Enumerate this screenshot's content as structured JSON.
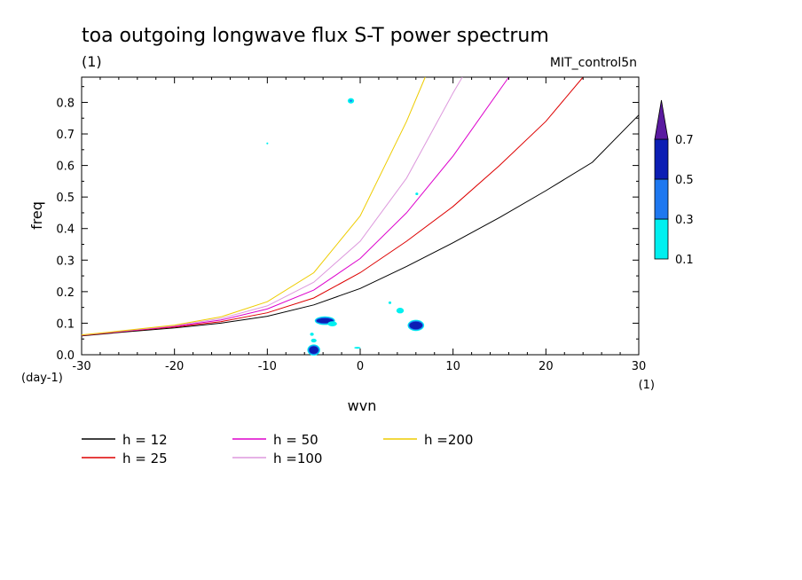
{
  "chart_data": {
    "type": "contour",
    "title": "toa outgoing longwave flux S-T power spectrum",
    "subtitle_left": "(1)",
    "subtitle_right": "MIT_control5n",
    "xlabel": "wvn",
    "ylabel": "freq",
    "x_unit": "(1)",
    "y_unit": "(day-1)",
    "xlim": [
      -30,
      30
    ],
    "ylim": [
      0,
      0.88
    ],
    "x_ticks": [
      -30,
      -20,
      -10,
      0,
      10,
      20,
      30
    ],
    "x_tick_labels": [
      "-30",
      "-20",
      "-10",
      "0",
      "10",
      "20",
      "30"
    ],
    "y_ticks": [
      0.0,
      0.1,
      0.2,
      0.3,
      0.4,
      0.5,
      0.6,
      0.7,
      0.8
    ],
    "y_tick_labels": [
      "0.0",
      "0.1",
      "0.2",
      "0.3",
      "0.4",
      "0.5",
      "0.6",
      "0.7",
      "0.8"
    ],
    "series": [
      {
        "name": "h = 12",
        "color": "#000000",
        "x": [
          -30,
          -25,
          -20,
          -15,
          -10,
          -5,
          0,
          5,
          10,
          15,
          20,
          25,
          30
        ],
        "y": [
          0.06,
          0.073,
          0.085,
          0.1,
          0.122,
          0.158,
          0.21,
          0.28,
          0.355,
          0.435,
          0.52,
          0.61,
          0.76
        ]
      },
      {
        "name": "h = 25",
        "color": "#dd0000",
        "x": [
          -30,
          -25,
          -20,
          -15,
          -10,
          -5,
          0,
          5,
          10,
          15,
          20,
          24
        ],
        "y": [
          0.061,
          0.075,
          0.088,
          0.105,
          0.133,
          0.18,
          0.26,
          0.36,
          0.47,
          0.6,
          0.74,
          0.88
        ]
      },
      {
        "name": "h = 50",
        "color": "#dd00cc",
        "x": [
          -30,
          -25,
          -20,
          -15,
          -10,
          -5,
          0,
          5,
          10,
          16
        ],
        "y": [
          0.062,
          0.076,
          0.09,
          0.11,
          0.145,
          0.205,
          0.305,
          0.45,
          0.63,
          0.88
        ]
      },
      {
        "name": "h =100",
        "color": "#dd99dd",
        "x": [
          -30,
          -25,
          -20,
          -15,
          -10,
          -5,
          0,
          5,
          10,
          11
        ],
        "y": [
          0.062,
          0.077,
          0.092,
          0.115,
          0.155,
          0.23,
          0.36,
          0.56,
          0.83,
          0.88
        ]
      },
      {
        "name": "h =200",
        "color": "#eecc00",
        "x": [
          -30,
          -25,
          -20,
          -15,
          -10,
          -5,
          0,
          5,
          7
        ],
        "y": [
          0.063,
          0.078,
          0.094,
          0.12,
          0.168,
          0.26,
          0.44,
          0.74,
          0.88
        ]
      }
    ],
    "colorbar": {
      "levels": [
        "0.1",
        "0.3",
        "0.5",
        "0.7"
      ],
      "colors": [
        "#00f0f0",
        "#1e78f0",
        "#0c1eb4",
        "#5a1aa0"
      ]
    },
    "contour_blobs": [
      {
        "x": -3.8,
        "y": 0.108,
        "rx": 0.9,
        "ry": 0.008,
        "level": 2
      },
      {
        "x": -3.0,
        "y": 0.098,
        "rx": 0.5,
        "ry": 0.008,
        "level": 0
      },
      {
        "x": -5.0,
        "y": 0.015,
        "rx": 0.5,
        "ry": 0.012,
        "level": 2
      },
      {
        "x": -5.0,
        "y": 0.045,
        "rx": 0.3,
        "ry": 0.006,
        "level": 0
      },
      {
        "x": -5.2,
        "y": 0.065,
        "rx": 0.2,
        "ry": 0.005,
        "level": 0
      },
      {
        "x": -0.3,
        "y": 0.022,
        "rx": 0.35,
        "ry": 0.003,
        "level": 0
      },
      {
        "x": 6.0,
        "y": 0.093,
        "rx": 0.7,
        "ry": 0.012,
        "level": 2
      },
      {
        "x": 4.3,
        "y": 0.14,
        "rx": 0.4,
        "ry": 0.009,
        "level": 0
      },
      {
        "x": 3.2,
        "y": 0.165,
        "rx": 0.15,
        "ry": 0.004,
        "level": 0
      },
      {
        "x": 6.1,
        "y": 0.51,
        "rx": 0.15,
        "ry": 0.004,
        "level": 0
      },
      {
        "x": -10.0,
        "y": 0.67,
        "rx": 0.1,
        "ry": 0.003,
        "level": 0
      },
      {
        "x": -1.0,
        "y": 0.805,
        "rx": 0.15,
        "ry": 0.003,
        "level": 1
      }
    ]
  }
}
